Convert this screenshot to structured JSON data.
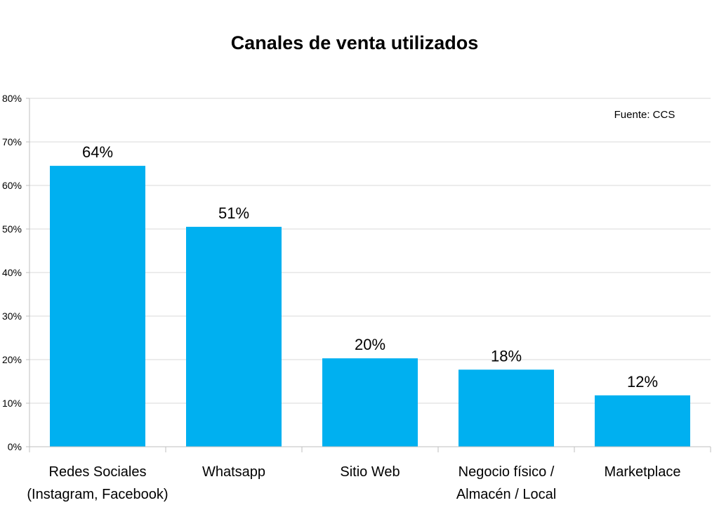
{
  "chart_data": {
    "type": "bar",
    "title": "Canales de venta utilizados",
    "source_note": "Fuente: CCS",
    "categories": [
      [
        "Redes Sociales",
        "(Instagram, Facebook)"
      ],
      [
        "Whatsapp"
      ],
      [
        "Sitio Web"
      ],
      [
        "Negocio físico /",
        "Almacén / Local"
      ],
      [
        "Marketplace"
      ]
    ],
    "values": [
      64.5,
      50.5,
      20.3,
      17.7,
      11.8
    ],
    "data_labels": [
      "64%",
      "51%",
      "20%",
      "18%",
      "12%"
    ],
    "ylim": [
      0,
      80
    ],
    "yticks": [
      0,
      10,
      20,
      30,
      40,
      50,
      60,
      70,
      80
    ],
    "ytick_labels": [
      "0%",
      "10%",
      "20%",
      "30%",
      "40%",
      "50%",
      "60%",
      "70%",
      "80%"
    ],
    "grid": true,
    "colors": {
      "bar": "#00b0f0",
      "grid": "#d9d9d9",
      "axis": "#bfbfbf",
      "text": "#000000"
    }
  }
}
